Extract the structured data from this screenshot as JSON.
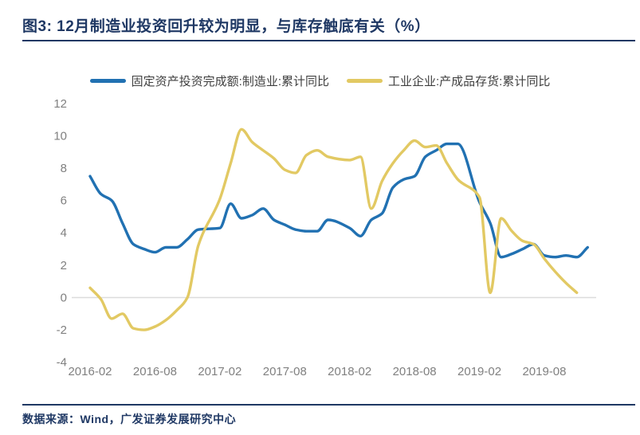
{
  "page": {
    "title": "图3:  12月制造业投资回升较为明显，与库存触底有关（%）",
    "source_note": "数据来源：Wind，广发证券发展研究中心",
    "accent_color": "#1F3864",
    "background_color": "#FFFFFF"
  },
  "chart_data": {
    "type": "line",
    "title": "12月制造业投资回升较为明显，与库存触底有关（%）",
    "unit": "%",
    "xlabel": "",
    "ylabel": "",
    "ylim": [
      -4,
      12
    ],
    "yticks": [
      -4,
      -2,
      0,
      2,
      4,
      6,
      8,
      10,
      12
    ],
    "x_tick_labels": [
      "2016-02",
      "2016-08",
      "2017-02",
      "2017-08",
      "2018-02",
      "2018-08",
      "2019-02",
      "2019-08"
    ],
    "grid": "zero-baseline-only",
    "zero_line_color": "#DCDCDC",
    "axis_text_color": "#808080",
    "legend_position": "top-center",
    "line_style": "smooth",
    "months": [
      "2016-02",
      "2016-03",
      "2016-04",
      "2016-05",
      "2016-06",
      "2016-07",
      "2016-08",
      "2016-09",
      "2016-10",
      "2016-11",
      "2016-12",
      "2017-02",
      "2017-03",
      "2017-04",
      "2017-05",
      "2017-06",
      "2017-07",
      "2017-08",
      "2017-09",
      "2017-10",
      "2017-11",
      "2017-12",
      "2018-02",
      "2018-03",
      "2018-04",
      "2018-05",
      "2018-06",
      "2018-07",
      "2018-08",
      "2018-09",
      "2018-10",
      "2018-11",
      "2018-12",
      "2019-02",
      "2019-03",
      "2019-04",
      "2019-05",
      "2019-06",
      "2019-07",
      "2019-08",
      "2019-09",
      "2019-10",
      "2019-11",
      "2019-12"
    ],
    "series": [
      {
        "key": "manufacturing-fai",
        "name": "固定资产投资完成额:制造业:累计同比",
        "color": "#2171B2",
        "values": [
          7.5,
          6.4,
          6.0,
          4.6,
          3.3,
          3.0,
          2.8,
          3.1,
          3.1,
          3.6,
          4.2,
          4.3,
          5.8,
          4.9,
          5.1,
          5.5,
          4.8,
          4.5,
          4.2,
          4.1,
          4.1,
          4.8,
          4.3,
          3.8,
          4.8,
          5.2,
          6.8,
          7.3,
          7.5,
          8.7,
          9.1,
          9.5,
          9.5,
          5.9,
          4.6,
          2.5,
          2.7,
          3.0,
          3.3,
          2.6,
          2.5,
          2.6,
          2.5,
          3.1
        ]
      },
      {
        "key": "finished-goods-inventory",
        "name": "工业企业:产成品存货:累计同比",
        "color": "#E2C963",
        "values": [
          0.6,
          -0.1,
          -1.3,
          -1.0,
          -1.9,
          -2.0,
          -1.8,
          -1.4,
          -0.8,
          0.0,
          3.2,
          6.1,
          8.3,
          10.4,
          9.6,
          9.1,
          8.6,
          7.9,
          7.7,
          8.8,
          9.1,
          8.7,
          8.5,
          8.7,
          5.5,
          7.2,
          8.3,
          9.1,
          9.7,
          9.3,
          9.4,
          8.3,
          7.3,
          6.2,
          0.3,
          4.9,
          4.1,
          3.5,
          3.3,
          2.4,
          1.6,
          0.9,
          0.3,
          null
        ]
      }
    ]
  }
}
